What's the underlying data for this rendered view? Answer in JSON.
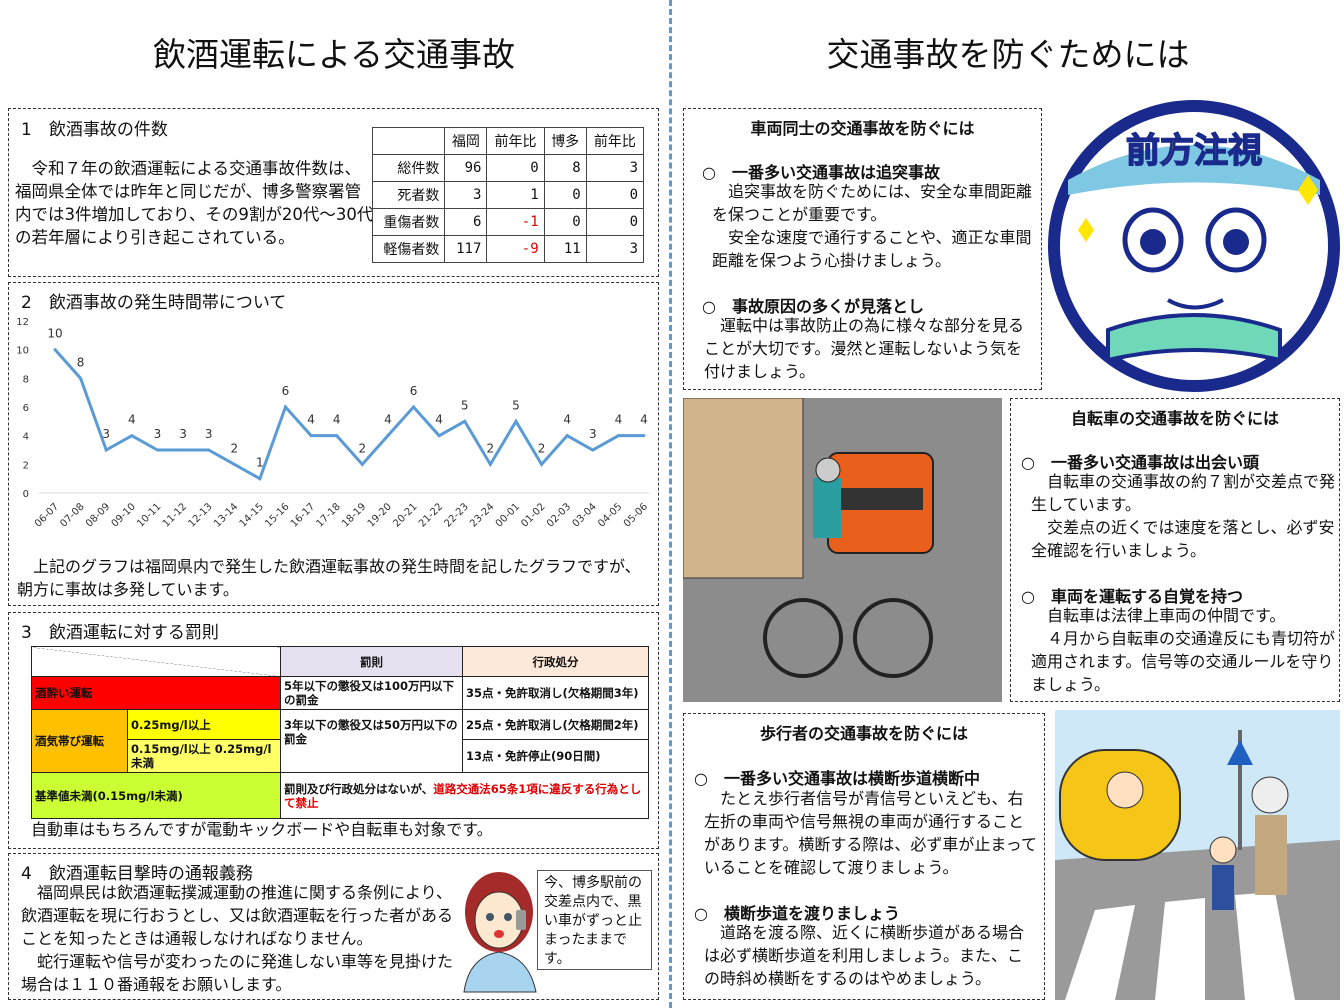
{
  "left": {
    "title": "飲酒運転による交通事故",
    "s1": {
      "heading": "1　飲酒事故の件数",
      "body": "　令和７年の飲酒運転による交通事故件数は、福岡県全体では昨年と同じだが、博多警察署管内では3件増加しており、その9割が20代～30代の若年層により引き起こされている。",
      "table": {
        "headers": [
          "",
          "福岡",
          "前年比",
          "博多",
          "前年比"
        ],
        "rows": [
          [
            "総件数",
            "96",
            "0",
            "8",
            "3"
          ],
          [
            "死者数",
            "3",
            "1",
            "0",
            "0"
          ],
          [
            "重傷者数",
            "6",
            "-1",
            "0",
            "0"
          ],
          [
            "軽傷者数",
            "117",
            "-9",
            "11",
            "3"
          ]
        ]
      }
    },
    "s2": {
      "heading": "2　飲酒事故の発生時間帯について",
      "body": "　上記のグラフは福岡県内で発生した飲酒運転事故の発生時間を記したグラフですが、朝方に事故は多発しています。"
    },
    "s3": {
      "heading": "3　飲酒運転に対する罰則",
      "footer": "自動車はもちろんですが電動キックボードや自転車も対象です。",
      "table": {
        "col_penalty": "罰則",
        "col_admin": "行政処分",
        "drunk": "酒酔い運転",
        "drunk_penalty": "5年以下の懲役又は100万円以下の罰金",
        "drunk_admin": "35点・免許取消し(欠格期間3年)",
        "dui": "酒気帯び運転",
        "dui_high": "0.25mg/l以上",
        "dui_low": "0.15mg/l以上 0.25mg/l未満",
        "dui_penalty": "3年以下の懲役又は50万円以下の罰金",
        "dui_high_admin": "25点・免許取消し(欠格期間2年)",
        "dui_low_admin": "13点・免許停止(90日間)",
        "under": "基準値未満(0.15mg/l未満)",
        "under_text": "罰則及び行政処分はないが、",
        "under_red": "道路交通法65条1項に違反する行為として禁止",
        "colors": {
          "drunk": "#ff0000",
          "dui": "#ffc000",
          "high": "#ffff00",
          "low": "#ffff66",
          "under": "#ccff33",
          "penalty_head": "#e6e0f0",
          "admin_head": "#fde9d9"
        }
      }
    },
    "s4": {
      "heading": "4　飲酒運転目撃時の通報義務",
      "body1": "　福岡県民は飲酒運転撲滅運動の推進に関する条例により、飲酒運転を現に行おうとし、又は飲酒運転を行った者があることを知ったときは通報しなければなりません。",
      "body2": "　蛇行運転や信号が変わったのに発進しない車等を見掛けた場合は１１０番通報をお願いします。",
      "bubble": "今、博多駅前の交差点内で、黒い車がずっと止まったままです。"
    }
  },
  "right": {
    "title": "交通事故を防ぐためには",
    "logo_text": "前方注視",
    "vehicle": {
      "heading": "車両同士の交通事故を防ぐには",
      "p1_title": "○　一番多い交通事故は追突事故",
      "p1": "　追突事故を防ぐためには、安全な車間距離を保つことが重要です。\n　安全な速度で通行することや、適正な車間距離を保つよう心掛けましょう。",
      "p2_title": "○　事故原因の多くが見落とし",
      "p2": "　運転中は事故防止の為に様々な部分を見ることが大切です。漫然と運転しないよう気を付けましょう。"
    },
    "bicycle": {
      "heading": "自転車の交通事故を防ぐには",
      "p1_title": "○　一番多い交通事故は出会い頭",
      "p1": "　自転車の交通事故の約７割が交差点で発生しています。\n　交差点の近くでは速度を落とし、必ず安全確認を行いましょう。",
      "p2_title": "○　車両を運転する自覚を持つ",
      "p2": "　自転車は法律上車両の仲間です。\n　４月から自転車の交通違反にも青切符が適用されます。信号等の交通ルールを守りましょう。"
    },
    "pedestrian": {
      "heading": "歩行者の交通事故を防ぐには",
      "p1_title": "○　一番多い交通事故は横断歩道横断中",
      "p1": "　たとえ歩行者信号が青信号といえども、右左折の車両や信号無視の車両が通行することがあります。横断する際は、必ず車が止まっていることを確認して渡りましょう。",
      "p2_title": "○　横断歩道を渡りましょう",
      "p2": "　道路を渡る際、近くに横断歩道がある場合は必ず横断歩道を利用しましょう。また、この時斜め横断をするのはやめましょう。"
    }
  },
  "chart_data": {
    "type": "line",
    "color": "#5b9bd5",
    "categories": [
      "06-07",
      "07-08",
      "08-09",
      "09-10",
      "10-11",
      "11-12",
      "12-13",
      "13-14",
      "14-15",
      "15-16",
      "16-17",
      "17-18",
      "18-19",
      "19-20",
      "20-21",
      "21-22",
      "22-23",
      "23-24",
      "00-01",
      "01-02",
      "02-03",
      "03-04",
      "04-05",
      "05-06"
    ],
    "values": [
      10,
      8,
      3,
      4,
      3,
      3,
      3,
      2,
      1,
      6,
      4,
      4,
      2,
      4,
      6,
      4,
      5,
      2,
      5,
      2,
      4,
      3,
      4,
      4
    ],
    "yticks": [
      0,
      2,
      4,
      6,
      8,
      10,
      12
    ],
    "ylim": [
      0,
      12
    ],
    "grid": false,
    "data_labels": true
  }
}
